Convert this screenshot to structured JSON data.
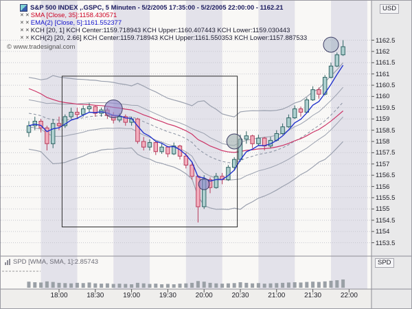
{
  "app": {
    "copyright": "© www.tradesignal.com"
  },
  "colors": {
    "title_text": "#1a1a5e",
    "stripe_light": "#f9f8f6",
    "stripe_dark": "#e3e2ea",
    "grid": "#c6c6ce",
    "candle_up": "#2e6363",
    "candle_up_fill": "#aecfcf",
    "candle_down": "#b83a5a",
    "candle_down_fill": "#f2aebd",
    "sma_line": "#cc3366",
    "ema_line": "#2233cc",
    "band_line": "#9aa0ae",
    "spd_bar": "#9aa0a6",
    "axis_panel": "#e9e9ea"
  },
  "legend": {
    "title": "S&P 500 INDEX ,.GSPC, 5 Minuten - 5/2/2005 17:35:00 - 5/2/2005 22:00:00 - 1162.21",
    "remove_icon": "✕",
    "indicators": [
      {
        "text": "SMA [Close, 35]:1158.430571",
        "color": "#cc0022"
      },
      {
        "text": "EMA(2) [Close, 5]:1161.552377",
        "color": "#1111cc"
      },
      {
        "text": "KCH [20, 1] KCH Center:1159.718943 KCH Upper:1160.407443 KCH Lower:1159.030443",
        "color": "#1a1a2e"
      },
      {
        "text": "KCH(2) [20, 2.66] KCH Center:1159.718943 KCH Upper:1161.550353 KCH Lower:1157.887533",
        "color": "#1a1a2e"
      }
    ]
  },
  "axes": {
    "currency_label": "USD",
    "spd_label": "SPD",
    "price_ticks": [
      "1162.5",
      "1162",
      "1161.5",
      "1161",
      "1160.5",
      "1160",
      "1159.5",
      "1159",
      "1158.5",
      "1158",
      "1157.5",
      "1157",
      "1156.5",
      "1156",
      "1155.5",
      "1155",
      "1154.5",
      "1154",
      "1153.5"
    ],
    "time_labels": [
      "18:00",
      "18:30",
      "19:00",
      "19:30",
      "20:00",
      "20:30",
      "21:00",
      "21:30",
      "22:00"
    ]
  },
  "spd_panel": {
    "legend": "SPD [WMA, SMA, 1]:2.85743"
  },
  "chart_data": {
    "type": "candlestick",
    "symbol": "S&P 500 INDEX ,.GSPC",
    "interval": "5 Minuten",
    "session_start": "5/2/2005 17:35:00",
    "session_end": "5/2/2005 22:00:00",
    "last": 1162.21,
    "y_axis": {
      "min": 1153.5,
      "max": 1162.5,
      "step": 0.5,
      "unit": "USD"
    },
    "times": [
      "17:35",
      "17:40",
      "17:45",
      "17:50",
      "17:55",
      "18:00",
      "18:05",
      "18:10",
      "18:15",
      "18:20",
      "18:25",
      "18:30",
      "18:35",
      "18:40",
      "18:45",
      "18:50",
      "18:55",
      "19:00",
      "19:05",
      "19:10",
      "19:15",
      "19:20",
      "19:25",
      "19:30",
      "19:35",
      "19:40",
      "19:45",
      "19:50",
      "19:55",
      "20:00",
      "20:05",
      "20:10",
      "20:15",
      "20:20",
      "20:25",
      "20:30",
      "20:35",
      "20:40",
      "20:45",
      "20:50",
      "20:55",
      "21:00",
      "21:05",
      "21:10",
      "21:15",
      "21:20",
      "21:25",
      "21:30",
      "21:35",
      "21:40",
      "21:45",
      "21:50",
      "21:55"
    ],
    "open": [
      1158.4,
      1158.7,
      1158.9,
      1158.6,
      1157.9,
      1158.8,
      1158.7,
      1159.1,
      1159.3,
      1159.2,
      1159.45,
      1159.55,
      1159.25,
      1159.4,
      1159.15,
      1158.95,
      1159.1,
      1158.85,
      1159.0,
      1158.0,
      1157.75,
      1157.95,
      1157.55,
      1157.75,
      1157.45,
      1157.8,
      1157.35,
      1156.95,
      1156.45,
      1155.1,
      1156.3,
      1155.95,
      1156.45,
      1156.3,
      1156.85,
      1157.2,
      1158.1,
      1158.25,
      1157.9,
      1158.15,
      1157.8,
      1158.05,
      1158.35,
      1158.65,
      1159.05,
      1159.45,
      1159.3,
      1159.85,
      1160.3,
      1160.1,
      1160.85,
      1161.35,
      1161.85
    ],
    "high": [
      1158.9,
      1159.1,
      1159.0,
      1158.7,
      1159.0,
      1159.1,
      1159.2,
      1159.5,
      1159.5,
      1159.6,
      1159.7,
      1159.6,
      1159.5,
      1159.5,
      1159.3,
      1159.25,
      1159.2,
      1159.1,
      1159.05,
      1158.2,
      1158.1,
      1158.0,
      1157.9,
      1157.8,
      1157.95,
      1157.85,
      1157.5,
      1157.1,
      1156.5,
      1156.5,
      1156.4,
      1156.6,
      1156.6,
      1156.95,
      1157.3,
      1158.3,
      1158.45,
      1158.3,
      1158.3,
      1158.2,
      1158.2,
      1158.5,
      1158.8,
      1159.2,
      1159.6,
      1159.55,
      1159.95,
      1160.45,
      1160.4,
      1160.95,
      1161.5,
      1161.95,
      1162.5
    ],
    "low": [
      1158.2,
      1158.5,
      1158.4,
      1157.6,
      1157.7,
      1158.5,
      1158.6,
      1159.0,
      1159.0,
      1159.1,
      1159.3,
      1159.1,
      1159.1,
      1159.0,
      1158.8,
      1158.85,
      1158.7,
      1158.7,
      1157.9,
      1157.6,
      1157.6,
      1157.4,
      1157.45,
      1157.3,
      1157.4,
      1157.2,
      1156.8,
      1156.3,
      1154.4,
      1155.0,
      1155.7,
      1155.9,
      1156.1,
      1156.25,
      1156.7,
      1157.1,
      1157.9,
      1157.7,
      1157.8,
      1157.6,
      1157.7,
      1158.0,
      1158.3,
      1158.6,
      1159.0,
      1159.1,
      1159.25,
      1159.8,
      1159.9,
      1160.05,
      1160.8,
      1161.3,
      1161.8
    ],
    "close": [
      1158.7,
      1158.9,
      1158.6,
      1157.9,
      1158.8,
      1158.7,
      1159.1,
      1159.3,
      1159.2,
      1159.45,
      1159.55,
      1159.25,
      1159.4,
      1159.15,
      1158.95,
      1159.1,
      1158.85,
      1159.0,
      1158.0,
      1157.75,
      1157.95,
      1157.55,
      1157.75,
      1157.45,
      1157.8,
      1157.35,
      1156.95,
      1156.45,
      1155.1,
      1156.3,
      1155.95,
      1156.45,
      1156.3,
      1156.85,
      1157.2,
      1158.1,
      1158.25,
      1157.9,
      1158.15,
      1157.8,
      1158.05,
      1158.35,
      1158.65,
      1159.05,
      1159.45,
      1159.3,
      1159.85,
      1160.3,
      1160.1,
      1160.85,
      1161.35,
      1161.85,
      1162.21
    ],
    "indicators": {
      "sma": {
        "period": 35,
        "source": "Close",
        "value": 1158.430571
      },
      "ema": {
        "period": 5,
        "source": "Close",
        "value": 1161.552377
      },
      "kch1": {
        "params": [
          20,
          1
        ],
        "center": 1159.718943,
        "upper": 1160.407443,
        "lower": 1159.030443
      },
      "kch2": {
        "params": [
          20,
          2.66
        ],
        "center": 1159.718943,
        "upper": 1161.550353,
        "lower": 1157.887533
      }
    },
    "bubbles": [
      {
        "time": "18:45",
        "price": 1159.45,
        "r": 13,
        "color": "#8e86c9"
      },
      {
        "time": "20:00",
        "price": 1156.1,
        "r": 8,
        "color": "#8e86c9"
      },
      {
        "time": "20:25",
        "price": 1158.0,
        "r": 11,
        "color": "#9fb0b0"
      },
      {
        "time": "21:45",
        "price": 1162.3,
        "r": 11,
        "color": "#a9b6c6"
      }
    ],
    "annotation_box": {
      "from_time": "18:05",
      "to_time": "20:25",
      "top_price": 1160.9,
      "bottom_price": 1154.2
    },
    "spd": {
      "type": "bar",
      "label": "SPD [WMA, SMA, 1]",
      "value": 2.85743,
      "values": [
        2.1,
        1.9,
        1.8,
        2.2,
        2.0,
        1.7,
        1.6,
        1.5,
        1.7,
        1.6,
        1.8,
        1.5,
        1.4,
        1.5,
        1.3,
        1.4,
        1.3,
        1.2,
        1.7,
        1.5,
        1.3,
        1.4,
        1.2,
        1.3,
        1.2,
        1.4,
        1.5,
        1.7,
        2.3,
        2.1,
        1.7,
        1.5,
        1.4,
        1.5,
        1.6,
        1.9,
        1.7,
        1.5,
        1.6,
        1.4,
        1.5,
        1.6,
        1.7,
        1.8,
        1.9,
        1.8,
        2.0,
        2.1,
        2.0,
        2.2,
        2.4,
        2.6,
        2.86
      ]
    }
  }
}
